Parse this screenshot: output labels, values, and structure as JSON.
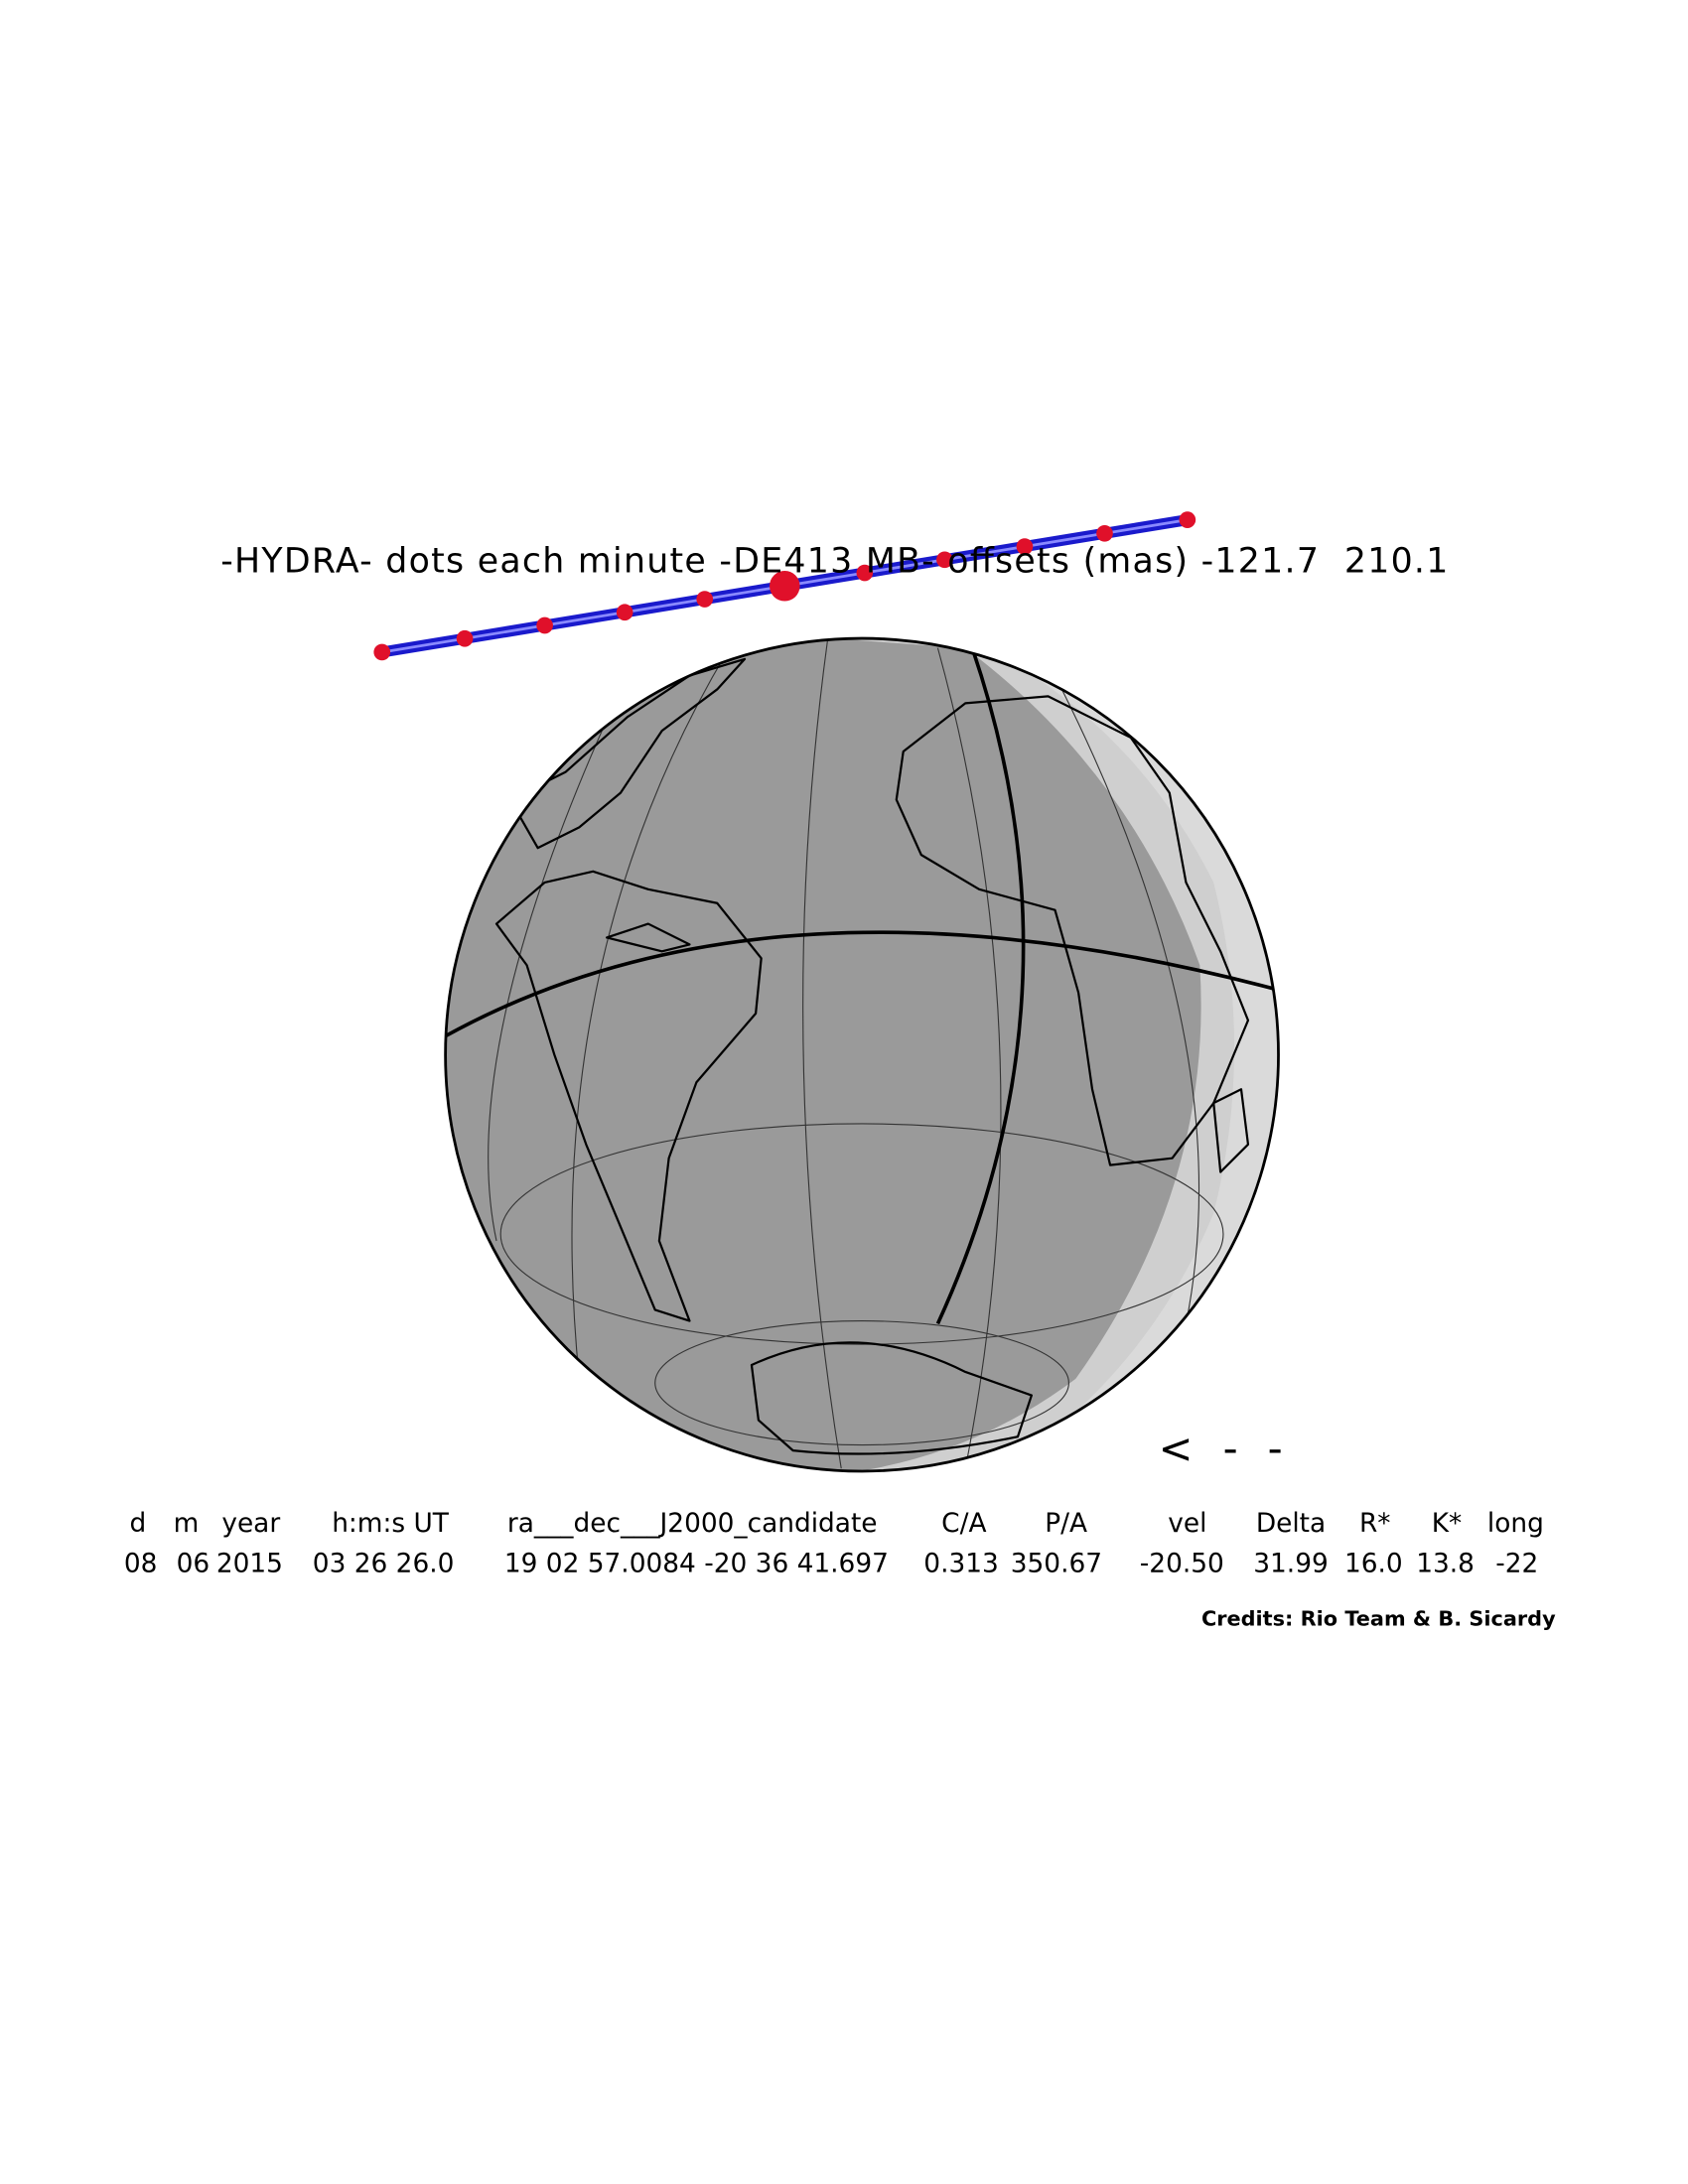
{
  "title": "-HYDRA- dots each minute -DE413 MB- offsets (mas) -121.7  210.1",
  "table": {
    "header": [
      "d",
      "m",
      "year",
      "h:m:s UT",
      "ra___dec___J2000_candidate",
      "C/A",
      "P/A",
      "vel",
      "Delta",
      "R*",
      "K*",
      "long"
    ],
    "row": [
      "08",
      "06",
      "2015",
      "03 26 26.0",
      "19 02 57.0084 -20 36 41.697",
      "0.313",
      "350.67",
      "-20.50",
      "31.99",
      "16.0",
      "13.8",
      "-22"
    ]
  },
  "direction_arrow": "<--",
  "credits": "Credits: Rio Team & B. Sicardy"
}
